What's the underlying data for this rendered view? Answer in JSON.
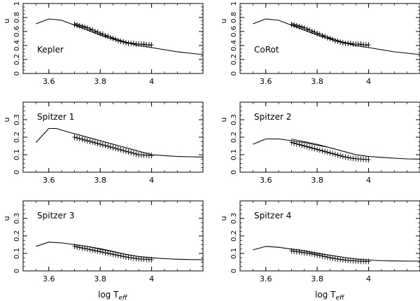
{
  "figure": {
    "xlabel_text": "log T",
    "xlabel_sub": "eff",
    "ylabel": "u"
  },
  "chart_data": [
    {
      "type": "line",
      "label": "Kepler",
      "xlabel": "log Teff",
      "ylabel": "u",
      "xlim": [
        3.5,
        4.2
      ],
      "ylim": [
        0,
        1.0
      ],
      "xticks": [
        3.6,
        3.8,
        4
      ],
      "xtick_labels": [
        "3.6",
        "3.8",
        "4"
      ],
      "yticks": [
        0,
        0.2,
        0.4,
        0.6,
        0.8,
        1.0
      ],
      "ytick_labels": [
        "0",
        "0.2",
        "0.4",
        "0.6",
        "0.8",
        "1"
      ],
      "series": [
        {
          "style": "solid-curve",
          "x": [
            3.55,
            3.6,
            3.65,
            3.7,
            3.75,
            3.8,
            3.85,
            3.9,
            3.95,
            4.0,
            4.05,
            4.1,
            4.15,
            4.2
          ],
          "y": [
            0.71,
            0.78,
            0.76,
            0.69,
            0.62,
            0.55,
            0.49,
            0.44,
            0.4,
            0.37,
            0.34,
            0.31,
            0.29,
            0.27
          ]
        },
        {
          "style": "upper-curve",
          "x": [
            3.7,
            3.75,
            3.8,
            3.85,
            3.9,
            3.95,
            4.0
          ],
          "y": [
            0.72,
            0.66,
            0.58,
            0.51,
            0.45,
            0.42,
            0.4
          ]
        },
        {
          "style": "crosses",
          "x": [
            3.7,
            3.71,
            3.72,
            3.73,
            3.74,
            3.75,
            3.76,
            3.77,
            3.78,
            3.79,
            3.8,
            3.81,
            3.82,
            3.83,
            3.84,
            3.85,
            3.86,
            3.87,
            3.88,
            3.89,
            3.9,
            3.91,
            3.92,
            3.93,
            3.94,
            3.95,
            3.96,
            3.97,
            3.98,
            3.99,
            4.0
          ],
          "y": [
            0.7,
            0.69,
            0.68,
            0.67,
            0.66,
            0.65,
            0.63,
            0.62,
            0.6,
            0.59,
            0.57,
            0.56,
            0.54,
            0.53,
            0.51,
            0.5,
            0.49,
            0.47,
            0.46,
            0.45,
            0.44,
            0.43,
            0.43,
            0.43,
            0.42,
            0.42,
            0.42,
            0.42,
            0.41,
            0.41,
            0.41
          ]
        }
      ]
    },
    {
      "type": "line",
      "label": "CoRot",
      "xlabel": "log Teff",
      "ylabel": "u",
      "xlim": [
        3.5,
        4.2
      ],
      "ylim": [
        0,
        1.0
      ],
      "xticks": [
        3.6,
        3.8,
        4
      ],
      "xtick_labels": [
        "3.6",
        "3.8",
        "4"
      ],
      "yticks": [
        0,
        0.2,
        0.4,
        0.6,
        0.8,
        1.0
      ],
      "ytick_labels": [
        "0",
        "0.2",
        "0.4",
        "0.6",
        "0.8",
        "1"
      ],
      "series": [
        {
          "style": "solid-curve",
          "x": [
            3.55,
            3.6,
            3.65,
            3.7,
            3.75,
            3.8,
            3.85,
            3.9,
            3.95,
            4.0,
            4.05,
            4.1,
            4.15,
            4.2
          ],
          "y": [
            0.71,
            0.78,
            0.76,
            0.69,
            0.62,
            0.55,
            0.49,
            0.44,
            0.4,
            0.37,
            0.34,
            0.31,
            0.29,
            0.27
          ]
        },
        {
          "style": "upper-curve",
          "x": [
            3.7,
            3.75,
            3.8,
            3.85,
            3.9,
            3.95,
            4.0
          ],
          "y": [
            0.72,
            0.66,
            0.58,
            0.51,
            0.45,
            0.42,
            0.4
          ]
        },
        {
          "style": "crosses",
          "x": [
            3.7,
            3.71,
            3.72,
            3.73,
            3.74,
            3.75,
            3.76,
            3.77,
            3.78,
            3.79,
            3.8,
            3.81,
            3.82,
            3.83,
            3.84,
            3.85,
            3.86,
            3.87,
            3.88,
            3.89,
            3.9,
            3.91,
            3.92,
            3.93,
            3.94,
            3.95,
            3.96,
            3.97,
            3.98,
            3.99,
            4.0
          ],
          "y": [
            0.7,
            0.69,
            0.68,
            0.67,
            0.66,
            0.65,
            0.63,
            0.62,
            0.6,
            0.59,
            0.57,
            0.56,
            0.54,
            0.53,
            0.51,
            0.5,
            0.49,
            0.47,
            0.46,
            0.45,
            0.44,
            0.43,
            0.43,
            0.43,
            0.42,
            0.42,
            0.42,
            0.42,
            0.41,
            0.41,
            0.41
          ]
        }
      ]
    },
    {
      "type": "line",
      "label": "Spitzer 1",
      "xlabel": "log Teff",
      "ylabel": "u",
      "xlim": [
        3.5,
        4.2
      ],
      "ylim": [
        0,
        0.4
      ],
      "xticks": [
        3.6,
        3.8,
        4
      ],
      "xtick_labels": [
        "3.6",
        "3.8",
        "4"
      ],
      "yticks": [
        0,
        0.1,
        0.2,
        0.3,
        0.4
      ],
      "ytick_labels": [
        "0",
        "0.1",
        "0.2",
        "0.3",
        ""
      ],
      "series": [
        {
          "style": "solid-curve",
          "x": [
            3.55,
            3.6,
            3.63,
            3.65,
            3.7,
            3.75,
            3.8,
            3.85,
            3.9,
            3.95,
            4.0,
            4.05,
            4.1,
            4.15,
            4.2
          ],
          "y": [
            0.17,
            0.25,
            0.25,
            0.24,
            0.22,
            0.2,
            0.18,
            0.16,
            0.14,
            0.12,
            0.1,
            0.095,
            0.09,
            0.088,
            0.087
          ]
        },
        {
          "style": "upper-curve",
          "x": [
            3.7,
            3.75,
            3.8,
            3.85,
            3.9,
            3.95,
            4.0
          ],
          "y": [
            0.22,
            0.2,
            0.18,
            0.16,
            0.14,
            0.12,
            0.1
          ]
        },
        {
          "style": "crosses",
          "x": [
            3.7,
            3.71,
            3.72,
            3.73,
            3.74,
            3.75,
            3.76,
            3.77,
            3.78,
            3.79,
            3.8,
            3.81,
            3.82,
            3.83,
            3.84,
            3.85,
            3.86,
            3.87,
            3.88,
            3.89,
            3.9,
            3.91,
            3.92,
            3.93,
            3.94,
            3.95,
            3.96,
            3.97,
            3.98,
            3.99,
            4.0
          ],
          "y": [
            0.2,
            0.196,
            0.192,
            0.188,
            0.184,
            0.18,
            0.176,
            0.172,
            0.168,
            0.164,
            0.16,
            0.156,
            0.152,
            0.148,
            0.144,
            0.14,
            0.136,
            0.132,
            0.128,
            0.124,
            0.12,
            0.116,
            0.112,
            0.108,
            0.104,
            0.1,
            0.099,
            0.098,
            0.097,
            0.096,
            0.095
          ]
        }
      ]
    },
    {
      "type": "line",
      "label": "Spitzer 2",
      "xlabel": "log Teff",
      "ylabel": "u",
      "xlim": [
        3.5,
        4.2
      ],
      "ylim": [
        0,
        0.4
      ],
      "xticks": [
        3.6,
        3.8,
        4
      ],
      "xtick_labels": [
        "3.6",
        "3.8",
        "4"
      ],
      "yticks": [
        0,
        0.1,
        0.2,
        0.3,
        0.4
      ],
      "ytick_labels": [
        "0",
        "0.1",
        "0.2",
        "0.3",
        ""
      ],
      "series": [
        {
          "style": "solid-curve",
          "x": [
            3.55,
            3.6,
            3.65,
            3.7,
            3.75,
            3.8,
            3.85,
            3.9,
            3.95,
            4.0,
            4.05,
            4.1,
            4.15,
            4.2
          ],
          "y": [
            0.16,
            0.19,
            0.19,
            0.18,
            0.17,
            0.155,
            0.14,
            0.12,
            0.1,
            0.09,
            0.085,
            0.08,
            0.076,
            0.075
          ]
        },
        {
          "style": "upper-curve",
          "x": [
            3.7,
            3.75,
            3.8,
            3.85,
            3.9,
            3.95,
            4.0
          ],
          "y": [
            0.19,
            0.175,
            0.16,
            0.14,
            0.12,
            0.1,
            0.09
          ]
        },
        {
          "style": "crosses",
          "x": [
            3.7,
            3.71,
            3.72,
            3.73,
            3.74,
            3.75,
            3.76,
            3.77,
            3.78,
            3.79,
            3.8,
            3.81,
            3.82,
            3.83,
            3.84,
            3.85,
            3.86,
            3.87,
            3.88,
            3.89,
            3.9,
            3.91,
            3.92,
            3.93,
            3.94,
            3.95,
            3.96,
            3.97,
            3.98,
            3.99,
            4.0
          ],
          "y": [
            0.17,
            0.166,
            0.162,
            0.158,
            0.154,
            0.15,
            0.146,
            0.142,
            0.138,
            0.134,
            0.13,
            0.126,
            0.122,
            0.118,
            0.114,
            0.11,
            0.106,
            0.102,
            0.098,
            0.094,
            0.09,
            0.087,
            0.084,
            0.081,
            0.079,
            0.077,
            0.076,
            0.075,
            0.074,
            0.073,
            0.072
          ]
        }
      ]
    },
    {
      "type": "line",
      "label": "Spitzer 3",
      "xlabel": "log Teff",
      "ylabel": "u",
      "xlim": [
        3.5,
        4.2
      ],
      "ylim": [
        0,
        0.4
      ],
      "xticks": [
        3.6,
        3.8,
        4
      ],
      "xtick_labels": [
        "3.6",
        "3.8",
        "4"
      ],
      "yticks": [
        0,
        0.1,
        0.2,
        0.3,
        0.4
      ],
      "ytick_labels": [
        "0",
        "0.1",
        "0.2",
        "0.3",
        ""
      ],
      "series": [
        {
          "style": "solid-curve",
          "x": [
            3.55,
            3.6,
            3.65,
            3.7,
            3.75,
            3.8,
            3.85,
            3.9,
            3.95,
            4.0,
            4.05,
            4.1,
            4.15,
            4.2
          ],
          "y": [
            0.14,
            0.165,
            0.16,
            0.15,
            0.14,
            0.125,
            0.11,
            0.095,
            0.082,
            0.075,
            0.07,
            0.067,
            0.065,
            0.064
          ]
        },
        {
          "style": "upper-curve",
          "x": [
            3.7,
            3.75,
            3.8,
            3.85,
            3.9,
            3.95,
            4.0
          ],
          "y": [
            0.15,
            0.14,
            0.128,
            0.112,
            0.095,
            0.082,
            0.075
          ]
        },
        {
          "style": "crosses",
          "x": [
            3.7,
            3.71,
            3.72,
            3.73,
            3.74,
            3.75,
            3.76,
            3.77,
            3.78,
            3.79,
            3.8,
            3.81,
            3.82,
            3.83,
            3.84,
            3.85,
            3.86,
            3.87,
            3.88,
            3.89,
            3.9,
            3.91,
            3.92,
            3.93,
            3.94,
            3.95,
            3.96,
            3.97,
            3.98,
            3.99,
            4.0
          ],
          "y": [
            0.14,
            0.137,
            0.134,
            0.131,
            0.128,
            0.125,
            0.122,
            0.119,
            0.116,
            0.113,
            0.11,
            0.107,
            0.104,
            0.101,
            0.098,
            0.095,
            0.092,
            0.089,
            0.086,
            0.083,
            0.08,
            0.077,
            0.075,
            0.073,
            0.071,
            0.069,
            0.068,
            0.067,
            0.066,
            0.065,
            0.064
          ]
        }
      ]
    },
    {
      "type": "line",
      "label": "Spitzer 4",
      "xlabel": "log Teff",
      "ylabel": "u",
      "xlim": [
        3.5,
        4.2
      ],
      "ylim": [
        0,
        0.4
      ],
      "xticks": [
        3.6,
        3.8,
        4
      ],
      "xtick_labels": [
        "3.6",
        "3.8",
        "4"
      ],
      "yticks": [
        0,
        0.1,
        0.2,
        0.3,
        0.4
      ],
      "ytick_labels": [
        "0",
        "0.1",
        "0.2",
        "0.3",
        ""
      ],
      "series": [
        {
          "style": "solid-curve",
          "x": [
            3.55,
            3.6,
            3.65,
            3.7,
            3.75,
            3.8,
            3.85,
            3.9,
            3.95,
            4.0,
            4.05,
            4.1,
            4.15,
            4.2
          ],
          "y": [
            0.12,
            0.14,
            0.135,
            0.125,
            0.115,
            0.1,
            0.09,
            0.078,
            0.068,
            0.062,
            0.058,
            0.057,
            0.056,
            0.056
          ]
        },
        {
          "style": "upper-curve",
          "x": [
            3.7,
            3.75,
            3.8,
            3.85,
            3.9,
            3.95,
            4.0
          ],
          "y": [
            0.125,
            0.115,
            0.102,
            0.09,
            0.078,
            0.068,
            0.062
          ]
        },
        {
          "style": "crosses",
          "x": [
            3.7,
            3.71,
            3.72,
            3.73,
            3.74,
            3.75,
            3.76,
            3.77,
            3.78,
            3.79,
            3.8,
            3.81,
            3.82,
            3.83,
            3.84,
            3.85,
            3.86,
            3.87,
            3.88,
            3.89,
            3.9,
            3.91,
            3.92,
            3.93,
            3.94,
            3.95,
            3.96,
            3.97,
            3.98,
            3.99,
            4.0
          ],
          "y": [
            0.115,
            0.112,
            0.11,
            0.108,
            0.106,
            0.104,
            0.102,
            0.1,
            0.097,
            0.094,
            0.091,
            0.088,
            0.085,
            0.082,
            0.079,
            0.076,
            0.073,
            0.07,
            0.068,
            0.066,
            0.064,
            0.062,
            0.06,
            0.059,
            0.058,
            0.057,
            0.056,
            0.055,
            0.055,
            0.054,
            0.054
          ]
        }
      ]
    }
  ]
}
